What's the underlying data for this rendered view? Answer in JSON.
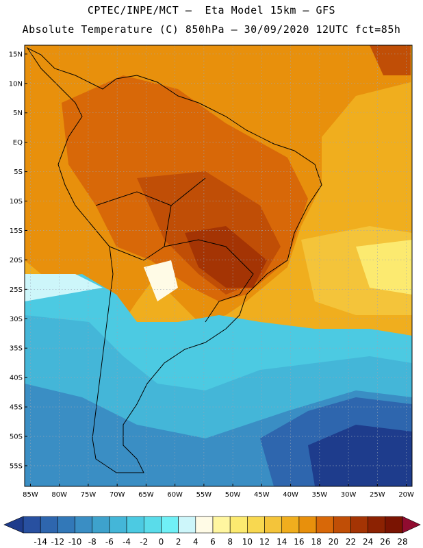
{
  "header": {
    "line1": "CPTEC/INPE/MCT –  Eta Model 15km – GFS",
    "line2": "Absolute Temperature (C) 850hPa – 30/09/2020 12UTC fct=85h"
  },
  "map": {
    "lon_range": [
      -86,
      -19
    ],
    "lat_range": [
      -58.5,
      16.5
    ],
    "lat_ticks": [
      {
        "value": 15,
        "label": "15N"
      },
      {
        "value": 10,
        "label": "10N"
      },
      {
        "value": 5,
        "label": "5N"
      },
      {
        "value": 0,
        "label": "EQ"
      },
      {
        "value": -5,
        "label": "5S"
      },
      {
        "value": -10,
        "label": "10S"
      },
      {
        "value": -15,
        "label": "15S"
      },
      {
        "value": -20,
        "label": "20S"
      },
      {
        "value": -25,
        "label": "25S"
      },
      {
        "value": -30,
        "label": "30S"
      },
      {
        "value": -35,
        "label": "35S"
      },
      {
        "value": -40,
        "label": "40S"
      },
      {
        "value": -45,
        "label": "45S"
      },
      {
        "value": -50,
        "label": "50S"
      },
      {
        "value": -55,
        "label": "55S"
      }
    ],
    "lon_ticks": [
      {
        "value": -85,
        "label": "85W"
      },
      {
        "value": -80,
        "label": "80W"
      },
      {
        "value": -75,
        "label": "75W"
      },
      {
        "value": -70,
        "label": "70W"
      },
      {
        "value": -65,
        "label": "65W"
      },
      {
        "value": -60,
        "label": "60W"
      },
      {
        "value": -55,
        "label": "55W"
      },
      {
        "value": -50,
        "label": "50W"
      },
      {
        "value": -45,
        "label": "45W"
      },
      {
        "value": -40,
        "label": "40W"
      },
      {
        "value": -35,
        "label": "35W"
      },
      {
        "value": -30,
        "label": "30W"
      },
      {
        "value": -25,
        "label": "25W"
      },
      {
        "value": -20,
        "label": "20W"
      }
    ],
    "grid": true
  },
  "colorbar": {
    "labels": [
      "-14",
      "-12",
      "-10",
      "-8",
      "-6",
      "-4",
      "-2",
      "0",
      "2",
      "4",
      "6",
      "8",
      "10",
      "12",
      "14",
      "16",
      "18",
      "20",
      "22",
      "24",
      "26",
      "28"
    ],
    "colors": [
      "#1e3c8c",
      "#2850a0",
      "#2e66ae",
      "#3278b8",
      "#3a8ec4",
      "#3ea2cc",
      "#44b6d8",
      "#4ccae2",
      "#5adcea",
      "#70f0f6",
      "#cdf6fa",
      "#fffbe6",
      "#fff6a0",
      "#fcea70",
      "#f8d850",
      "#f4c43a",
      "#f0ae1e",
      "#e8900c",
      "#d86808",
      "#c04e06",
      "#a43404",
      "#8c2202",
      "#7a1402",
      "#900c30"
    ]
  }
}
